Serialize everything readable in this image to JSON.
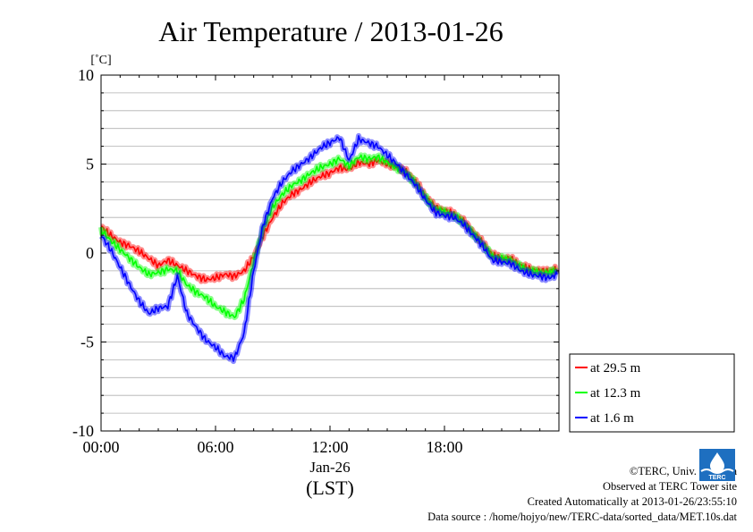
{
  "chart_data": {
    "type": "line",
    "title": "Air Temperature / 2013-01-26",
    "unit_label": "[˚C]",
    "xlabel_date": "Jan-26",
    "xlabel": "(LST)",
    "ylabel": "[˚C]",
    "ylim": [
      -10,
      10
    ],
    "xlim": [
      0,
      23.9
    ],
    "grid": true,
    "legend_position": "lower-right-outside",
    "y_ticks": [
      10,
      5,
      0,
      -5,
      -10
    ],
    "y_tick_labels": [
      "10",
      "5",
      "0",
      "-5",
      "-10"
    ],
    "x_ticks": [
      0,
      6,
      12,
      18
    ],
    "x_tick_labels": [
      "00:00",
      "06:00",
      "12:00",
      "18:00"
    ],
    "series": [
      {
        "name": "at 29.5 m",
        "color": "#ff0000",
        "x": [
          0,
          0.5,
          1,
          1.5,
          2,
          2.5,
          3,
          3.5,
          4,
          4.5,
          5,
          5.5,
          6,
          6.5,
          7,
          7.5,
          8,
          8.5,
          9,
          9.5,
          10,
          10.5,
          11,
          11.5,
          12,
          12.5,
          13,
          13.5,
          14,
          14.5,
          15,
          15.5,
          16,
          16.5,
          17,
          17.5,
          18,
          18.5,
          19,
          19.5,
          20,
          20.5,
          21,
          21.5,
          22,
          22.5,
          23,
          23.5,
          23.9
        ],
        "y": [
          1.5,
          1.0,
          0.6,
          0.4,
          0.1,
          -0.3,
          -0.7,
          -0.4,
          -0.7,
          -1.0,
          -1.3,
          -1.5,
          -1.4,
          -1.2,
          -1.3,
          -1.0,
          -0.2,
          1.0,
          2.0,
          2.8,
          3.3,
          3.6,
          4.0,
          4.3,
          4.5,
          4.8,
          4.7,
          5.1,
          5.0,
          5.2,
          5.0,
          4.8,
          4.6,
          4.0,
          3.2,
          2.6,
          2.4,
          2.2,
          1.8,
          1.2,
          0.6,
          -0.1,
          -0.3,
          -0.3,
          -0.7,
          -0.9,
          -1.0,
          -1.0,
          -0.9
        ]
      },
      {
        "name": "at 12.3 m",
        "color": "#00ff00",
        "x": [
          0,
          0.5,
          1,
          1.5,
          2,
          2.5,
          3,
          3.5,
          4,
          4.5,
          5,
          5.5,
          6,
          6.5,
          7,
          7.5,
          8,
          8.5,
          9,
          9.5,
          10,
          10.5,
          11,
          11.5,
          12,
          12.5,
          13,
          13.5,
          14,
          14.5,
          15,
          15.5,
          16,
          16.5,
          17,
          17.5,
          18,
          18.5,
          19,
          19.5,
          20,
          20.5,
          21,
          21.5,
          22,
          22.5,
          23,
          23.5,
          23.9
        ],
        "y": [
          1.3,
          0.7,
          0.2,
          -0.3,
          -0.8,
          -1.2,
          -1.1,
          -0.9,
          -1.0,
          -1.8,
          -2.2,
          -2.5,
          -3.0,
          -3.3,
          -3.6,
          -2.6,
          -0.5,
          1.4,
          2.6,
          3.3,
          3.8,
          4.1,
          4.5,
          4.8,
          5.0,
          5.3,
          4.9,
          5.4,
          5.3,
          5.4,
          5.1,
          4.8,
          4.5,
          3.9,
          3.1,
          2.5,
          2.3,
          2.1,
          1.7,
          1.1,
          0.5,
          -0.2,
          -0.3,
          -0.4,
          -0.8,
          -1.0,
          -1.1,
          -1.1,
          -1.0
        ]
      },
      {
        "name": "at 1.6 m",
        "color": "#0000ff",
        "x": [
          0,
          0.5,
          1,
          1.5,
          2,
          2.5,
          3,
          3.5,
          4,
          4.5,
          5,
          5.5,
          6,
          6.5,
          7,
          7.5,
          8,
          8.5,
          9,
          9.5,
          10,
          10.5,
          11,
          11.5,
          12,
          12.5,
          13,
          13.5,
          14,
          14.5,
          15,
          15.5,
          16,
          16.5,
          17,
          17.5,
          18,
          18.5,
          19,
          19.5,
          20,
          20.5,
          21,
          21.5,
          22,
          22.5,
          23,
          23.5,
          23.9
        ],
        "y": [
          1.0,
          0.2,
          -0.8,
          -1.8,
          -2.7,
          -3.4,
          -3.1,
          -3.0,
          -1.3,
          -3.4,
          -4.2,
          -4.9,
          -5.3,
          -5.8,
          -5.9,
          -4.5,
          -1.0,
          1.6,
          3.1,
          4.0,
          4.6,
          5.0,
          5.4,
          5.9,
          6.2,
          6.5,
          5.2,
          6.4,
          6.2,
          6.0,
          5.5,
          5.0,
          4.4,
          3.8,
          3.0,
          2.3,
          2.1,
          2.0,
          1.6,
          1.0,
          0.4,
          -0.4,
          -0.5,
          -0.6,
          -1.0,
          -1.2,
          -1.3,
          -1.4,
          -1.2
        ]
      }
    ]
  },
  "credits": {
    "copyright": "©TERC, Univ. Tsukuba",
    "site": "Observed at TERC Tower site",
    "created": "Created Automatically at 2013-01-26/23:55:10",
    "source": "Data source : /home/hojyo/new/TERC-data/sorted_data/MET.10s.dat",
    "logo_text": "TERC"
  }
}
